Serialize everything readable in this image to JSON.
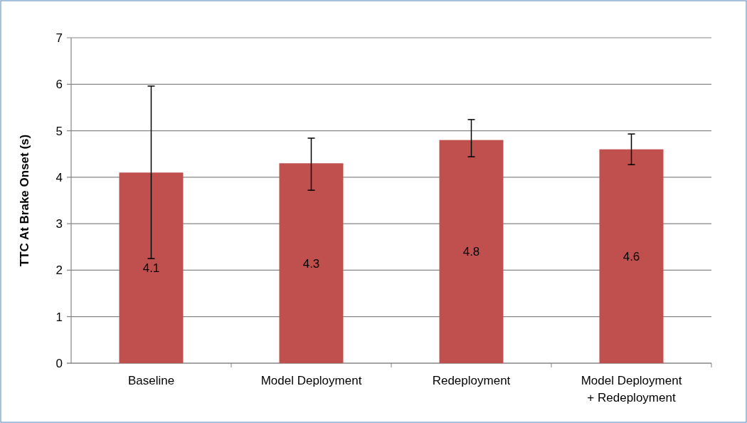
{
  "chart_data": {
    "type": "bar",
    "ylabel": "TTC At Brake Onset (s)",
    "categories": [
      "Baseline",
      "Model Deployment",
      "Redeployment",
      "Model Deployment\n+ Redeployment"
    ],
    "values": [
      4.1,
      4.3,
      4.8,
      4.6
    ],
    "color": "#c0504d",
    "errors": [
      [
        2.25,
        5.96
      ],
      [
        3.72,
        4.84
      ],
      [
        4.44,
        5.24
      ],
      [
        4.27,
        4.93
      ]
    ],
    "ylim": [
      0,
      7
    ],
    "yticks": [
      0,
      1,
      2,
      3,
      4,
      5,
      6,
      7
    ],
    "grid": "y",
    "data_labels": true
  }
}
